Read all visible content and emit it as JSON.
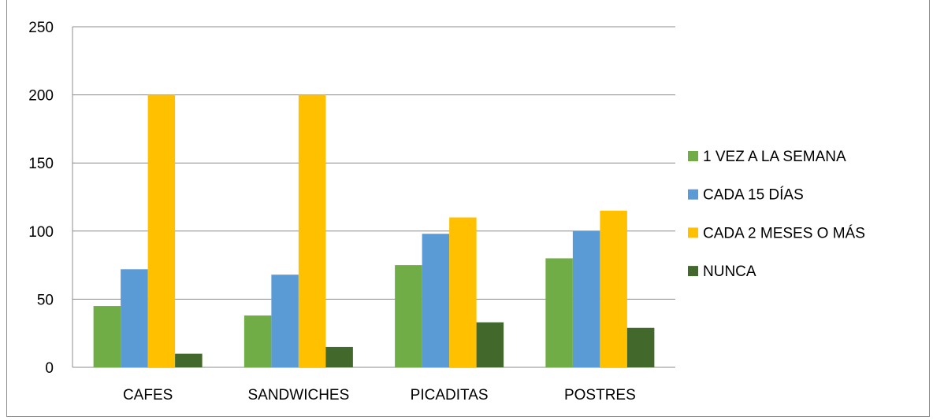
{
  "chart_data": {
    "type": "bar",
    "title": "",
    "xlabel": "",
    "ylabel": "",
    "ylim": [
      0,
      250
    ],
    "yticks": [
      "0",
      "50",
      "100",
      "150",
      "200",
      "250"
    ],
    "categories": [
      "CAFES",
      "SANDWICHES",
      "PICADITAS",
      "POSTRES"
    ],
    "series": [
      {
        "name": "1 VEZ A LA SEMANA",
        "color": "#70AD47",
        "values": [
          45,
          38,
          75,
          80
        ]
      },
      {
        "name": "CADA 15 DÍAS",
        "color": "#5B9BD5",
        "values": [
          72,
          68,
          98,
          100
        ]
      },
      {
        "name": "CADA 2 MESES O MÁS",
        "color": "#FFC000",
        "values": [
          200,
          200,
          110,
          115
        ]
      },
      {
        "name": "NUNCA",
        "color": "#43682B",
        "values": [
          10,
          15,
          33,
          29
        ]
      }
    ],
    "grid": true,
    "legend": "right"
  }
}
